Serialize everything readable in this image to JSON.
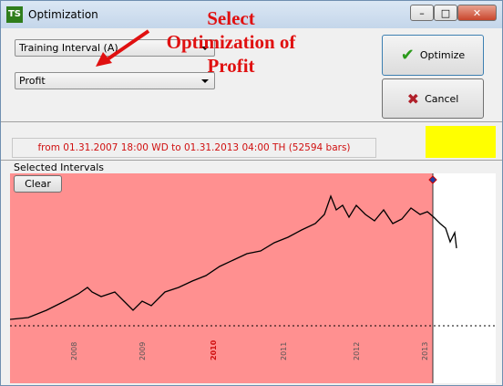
{
  "window": {
    "title": "Optimization",
    "app_icon": "TS"
  },
  "annotation": {
    "lines": [
      "Select",
      "Optimization of",
      "Profit"
    ]
  },
  "controls": {
    "interval_combo": "Training Interval (A)",
    "target_combo": "Profit",
    "optimize_button": "Optimize",
    "cancel_button": "Cancel"
  },
  "info": {
    "range_text": "from 01.31.2007  18:00 WD to 01.31.2013  04:00 TH  (52594 bars)"
  },
  "intervals": {
    "label": "Selected Intervals",
    "clear_button": "Clear",
    "year_labels": [
      "2008",
      "2009",
      "2010",
      "2011",
      "2012",
      "2013"
    ]
  }
}
